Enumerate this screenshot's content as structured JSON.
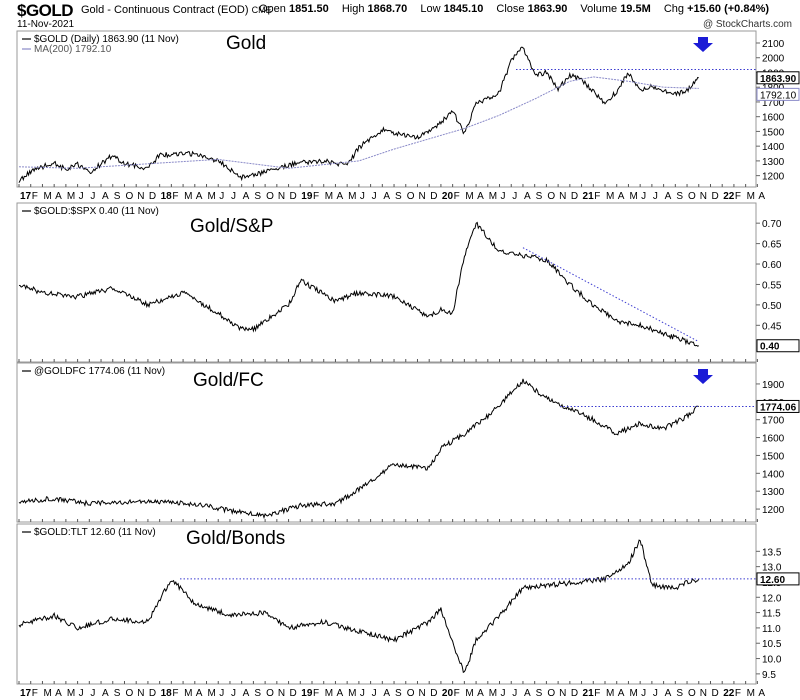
{
  "header": {
    "ticker": "$GOLD",
    "description": "Gold - Continuous Contract (EOD)",
    "exchange": "CME",
    "date": "11-Nov-2021",
    "copyright": "@ StockCharts.com",
    "stats": {
      "open_label": "Open",
      "open": "1851.50",
      "high_label": "High",
      "high": "1868.70",
      "low_label": "Low",
      "low": "1845.10",
      "close_label": "Close",
      "close": "1863.90",
      "volume_label": "Volume",
      "volume": "19.5M",
      "chg_label": "Chg",
      "chg": "+15.60 (+0.84%)"
    }
  },
  "x_axis": {
    "labels": [
      "17",
      "F",
      "M",
      "A",
      "M",
      "J",
      "J",
      "A",
      "S",
      "O",
      "N",
      "D",
      "18",
      "F",
      "M",
      "A",
      "M",
      "J",
      "J",
      "A",
      "S",
      "O",
      "N",
      "D",
      "19",
      "F",
      "M",
      "A",
      "M",
      "J",
      "J",
      "A",
      "S",
      "O",
      "N",
      "D",
      "20",
      "F",
      "M",
      "A",
      "M",
      "J",
      "J",
      "A",
      "S",
      "O",
      "N",
      "D",
      "21",
      "F",
      "M",
      "A",
      "M",
      "J",
      "J",
      "A",
      "S",
      "O",
      "N",
      "D",
      "22",
      "F",
      "M",
      "A"
    ],
    "year_labels": [
      "17",
      "18",
      "19",
      "20",
      "21",
      "22"
    ]
  },
  "colors": {
    "price_line": "#000000",
    "ma_line": "#8a8ac8",
    "dotted_line": "#3b3bd0",
    "arrow": "#1b1bd6",
    "grid": "#e5e5e5",
    "label_box_last": "#000000",
    "label_box_ma": "#8a8ac8"
  },
  "chart_data": [
    {
      "type": "line",
      "panel_title": "Gold",
      "legend": [
        "$GOLD (Daily) 1863.90 (11 Nov)",
        "MA(200) 1792.10"
      ],
      "ylim": [
        1150,
        2100
      ],
      "yticks": [
        "1200",
        "1300",
        "1400",
        "1500",
        "1600",
        "1700",
        "1800",
        "1900",
        "2000",
        "2100"
      ],
      "last_value_label": "1863.90",
      "ma_value_label": "1792.10",
      "horizontal_line": 1920,
      "arrow": true,
      "series": [
        {
          "name": "$GOLD (Daily)",
          "x": [
            "2017-01",
            "2017-02",
            "2017-04",
            "2017-05",
            "2017-06",
            "2017-07",
            "2017-09",
            "2017-10",
            "2017-12",
            "2018-01",
            "2018-04",
            "2018-06",
            "2018-08",
            "2018-10",
            "2019-01",
            "2019-03",
            "2019-05",
            "2019-06",
            "2019-08",
            "2019-09",
            "2019-11",
            "2019-12",
            "2020-01",
            "2020-02",
            "2020-03",
            "2020-04",
            "2020-05",
            "2020-06",
            "2020-07",
            "2020-08",
            "2020-09",
            "2020-10",
            "2020-11",
            "2020-12",
            "2021-01",
            "2021-03",
            "2021-04",
            "2021-05",
            "2021-06",
            "2021-07",
            "2021-08",
            "2021-09",
            "2021-10",
            "2021-11"
          ],
          "values": [
            1160,
            1230,
            1290,
            1240,
            1275,
            1220,
            1340,
            1280,
            1250,
            1340,
            1350,
            1300,
            1190,
            1225,
            1290,
            1300,
            1270,
            1390,
            1510,
            1490,
            1460,
            1510,
            1560,
            1640,
            1480,
            1700,
            1720,
            1770,
            1980,
            2070,
            1880,
            1900,
            1790,
            1880,
            1850,
            1690,
            1770,
            1900,
            1770,
            1810,
            1780,
            1750,
            1780,
            1864
          ]
        },
        {
          "name": "MA(200)",
          "x": [
            "2017-01",
            "2017-06",
            "2017-12",
            "2018-06",
            "2018-12",
            "2019-06",
            "2019-09",
            "2019-12",
            "2020-03",
            "2020-06",
            "2020-09",
            "2020-12",
            "2021-02",
            "2021-05",
            "2021-08",
            "2021-11"
          ],
          "values": [
            1260,
            1250,
            1280,
            1310,
            1250,
            1300,
            1380,
            1450,
            1520,
            1610,
            1720,
            1840,
            1870,
            1840,
            1800,
            1792
          ]
        }
      ]
    },
    {
      "type": "line",
      "panel_title": "Gold/S&P",
      "legend": [
        "$GOLD:$SPX 0.40 (11 Nov)"
      ],
      "ylim": [
        0.37,
        0.72
      ],
      "yticks": [
        "0.45",
        "0.50",
        "0.55",
        "0.60",
        "0.65",
        "0.70"
      ],
      "last_value_label": "0.40",
      "series": [
        {
          "name": "$GOLD:$SPX",
          "x": [
            "2017-01",
            "2017-03",
            "2017-06",
            "2017-09",
            "2017-12",
            "2018-03",
            "2018-06",
            "2018-08",
            "2018-09",
            "2018-12",
            "2019-01",
            "2019-04",
            "2019-06",
            "2019-09",
            "2019-12",
            "2020-01",
            "2020-02",
            "2020-03",
            "2020-04",
            "2020-06",
            "2020-08",
            "2020-10",
            "2020-12",
            "2021-02",
            "2021-04",
            "2021-06",
            "2021-08",
            "2021-10",
            "2021-11"
          ],
          "values": [
            0.55,
            0.53,
            0.52,
            0.54,
            0.5,
            0.53,
            0.48,
            0.44,
            0.44,
            0.5,
            0.56,
            0.51,
            0.53,
            0.52,
            0.47,
            0.49,
            0.48,
            0.62,
            0.7,
            0.63,
            0.62,
            0.61,
            0.55,
            0.5,
            0.46,
            0.45,
            0.43,
            0.41,
            0.4
          ]
        }
      ],
      "trend_line": {
        "from": [
          "2020-08",
          0.64
        ],
        "to": [
          "2021-11",
          0.41
        ]
      }
    },
    {
      "type": "line",
      "panel_title": "Gold/FC",
      "legend": [
        "@GOLDFC 1774.06 (11 Nov)"
      ],
      "ylim": [
        1150,
        1950
      ],
      "yticks": [
        "1200",
        "1300",
        "1400",
        "1500",
        "1600",
        "1700",
        "1800",
        "1900"
      ],
      "last_value_label": "1774.06",
      "horizontal_line": 1774,
      "arrow": true,
      "series": [
        {
          "name": "@GOLDFC",
          "x": [
            "2017-01",
            "2017-04",
            "2017-07",
            "2017-10",
            "2018-01",
            "2018-04",
            "2018-07",
            "2018-10",
            "2019-01",
            "2019-04",
            "2019-06",
            "2019-09",
            "2019-12",
            "2020-01",
            "2020-03",
            "2020-05",
            "2020-07",
            "2020-08",
            "2020-10",
            "2020-12",
            "2021-02",
            "2021-04",
            "2021-06",
            "2021-08",
            "2021-10",
            "2021-11"
          ],
          "values": [
            1240,
            1260,
            1230,
            1240,
            1240,
            1230,
            1190,
            1160,
            1220,
            1230,
            1310,
            1450,
            1430,
            1540,
            1620,
            1720,
            1850,
            1920,
            1820,
            1760,
            1700,
            1620,
            1680,
            1650,
            1720,
            1774
          ]
        }
      ]
    },
    {
      "type": "line",
      "panel_title": "Gold/Bonds",
      "legend": [
        "$GOLD:TLT 12.60 (11 Nov)"
      ],
      "ylim": [
        9.3,
        14.0
      ],
      "yticks": [
        "9.5",
        "10.0",
        "10.5",
        "11.0",
        "11.5",
        "12.0",
        "12.5",
        "13.0",
        "13.5"
      ],
      "last_value_label": "12.60",
      "horizontal_line": 12.6,
      "series": [
        {
          "name": "$GOLD:TLT",
          "x": [
            "2017-01",
            "2017-04",
            "2017-06",
            "2017-09",
            "2017-12",
            "2018-02",
            "2018-04",
            "2018-07",
            "2018-10",
            "2018-12",
            "2019-03",
            "2019-06",
            "2019-09",
            "2019-12",
            "2020-01",
            "2020-02",
            "2020-03",
            "2020-04",
            "2020-06",
            "2020-08",
            "2020-10",
            "2021-01",
            "2021-03",
            "2021-05",
            "2021-06",
            "2021-07",
            "2021-09",
            "2021-10",
            "2021-11"
          ],
          "values": [
            11.1,
            11.4,
            11.0,
            11.3,
            11.2,
            12.6,
            11.8,
            11.4,
            11.5,
            11.0,
            11.2,
            10.9,
            10.6,
            11.2,
            11.6,
            10.5,
            9.5,
            10.6,
            11.4,
            12.3,
            12.4,
            12.5,
            12.6,
            13.1,
            13.9,
            12.4,
            12.3,
            12.5,
            12.6
          ]
        }
      ]
    }
  ]
}
